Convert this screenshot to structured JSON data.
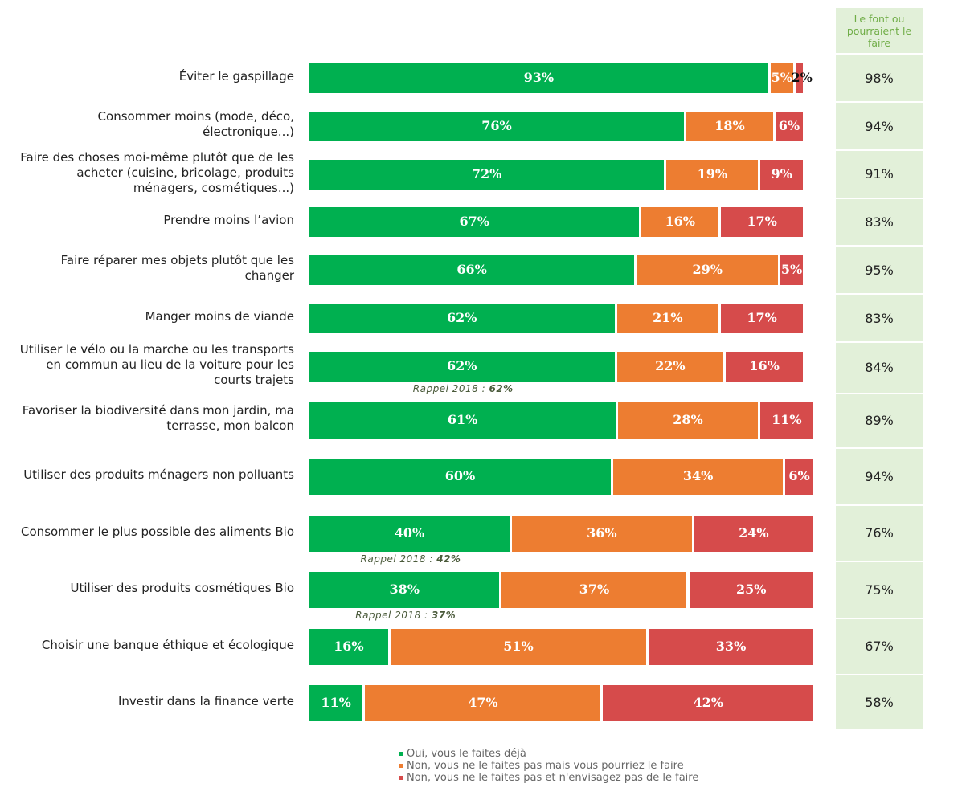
{
  "chart_data": {
    "type": "stacked-bar-horizontal",
    "categories": [
      "Éviter le gaspillage",
      "Consommer moins (mode, déco, électronique...)",
      "Faire des choses moi-même plutôt que de les acheter (cuisine, bricolage, produits ménagers, cosmétiques...)",
      "Prendre moins l’avion",
      "Faire réparer mes objets plutôt que les changer",
      "Manger moins de viande",
      "Utiliser le vélo ou la marche ou les transports en commun au lieu de la voiture pour les courts trajets",
      "Favoriser la biodiversité dans mon jardin, ma terrasse, mon balcon",
      "Utiliser des produits ménagers non polluants",
      "Consommer le plus possible des aliments Bio",
      "Utiliser des produits cosmétiques Bio",
      "Choisir une banque éthique et écologique",
      "Investir dans la finance verte"
    ],
    "xlim": [
      0,
      100
    ],
    "series": [
      {
        "name": "Oui, vous le faites déjà",
        "color": "#00b050",
        "values": [
          93,
          76,
          72,
          67,
          66,
          62,
          62,
          61,
          60,
          40,
          38,
          16,
          11
        ],
        "value_labels": [
          "93%",
          "76%",
          "72%",
          "67%",
          "66%",
          "62%",
          "62%",
          "61%",
          "60%",
          "40%",
          "38%",
          "16%",
          "11%"
        ]
      },
      {
        "name": "Non, vous ne le faites pas mais vous pourriez le faire",
        "color": "#ed7d31",
        "values": [
          5,
          18,
          19,
          16,
          29,
          21,
          22,
          28,
          34,
          36,
          37,
          51,
          47
        ],
        "value_labels": [
          "5%",
          "18%",
          "19%",
          "16%",
          "29%",
          "21%",
          "22%",
          "28%",
          "34%",
          "36%",
          "37%",
          "51%",
          "47%"
        ]
      },
      {
        "name": "Non, vous ne le faites pas et n'envisagez pas de le faire",
        "color": "#d64b4b",
        "values": [
          2,
          6,
          9,
          17,
          5,
          17,
          16,
          11,
          6,
          24,
          25,
          33,
          42
        ],
        "value_labels": [
          "2%",
          "6%",
          "9%",
          "17%",
          "5%",
          "17%",
          "16%",
          "11%",
          "6%",
          "24%",
          "25%",
          "33%",
          "42%"
        ]
      }
    ],
    "recall_label": "Rappel 2018 :",
    "recall_values": [
      null,
      null,
      null,
      null,
      null,
      null,
      62,
      null,
      null,
      42,
      37,
      null,
      null
    ],
    "recall_value_labels": [
      null,
      null,
      null,
      null,
      null,
      null,
      "62%",
      null,
      null,
      "42%",
      "37%",
      null,
      null
    ],
    "total": {
      "title": "Le font ou pourraient le faire",
      "color": "#e2f0d9",
      "values": [
        98,
        94,
        91,
        83,
        95,
        83,
        84,
        89,
        94,
        76,
        75,
        67,
        58
      ],
      "value_labels": [
        "98%",
        "94%",
        "91%",
        "83%",
        "95%",
        "83%",
        "84%",
        "89%",
        "94%",
        "76%",
        "75%",
        "67%",
        "58%"
      ]
    }
  }
}
